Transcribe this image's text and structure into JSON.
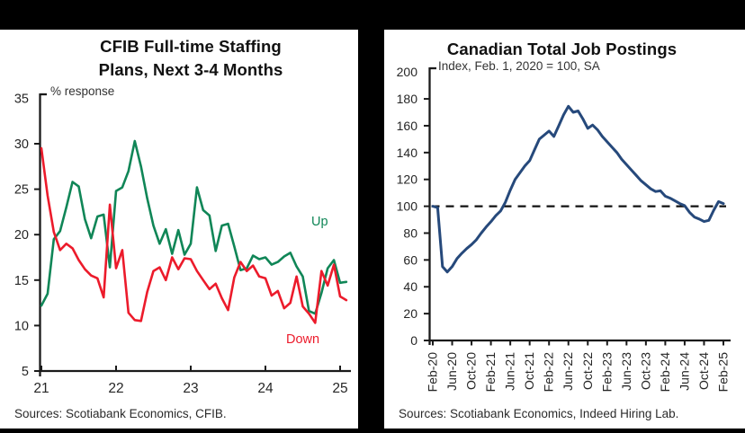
{
  "page": {
    "background": "#000000",
    "panel_background": "#ffffff"
  },
  "left_panel": {
    "source": "Sources: Scotiabank Economics, CFIB."
  },
  "right_panel": {
    "source": "Sources: Scotiabank Economics, Indeed Hiring Lab."
  },
  "chart_data": [
    {
      "id": "cfib_staffing_plans",
      "type": "line",
      "title": "CFIB Full-time Staffing Plans, Next 3-4 Months",
      "title_lines": [
        "CFIB Full-time Staffing",
        "Plans, Next 3-4 Months"
      ],
      "ylabel": "% response",
      "ylim": [
        5,
        35
      ],
      "yticks": [
        5,
        10,
        15,
        20,
        25,
        30,
        35
      ],
      "x_frequency": "monthly",
      "x_start": "Jan-2021",
      "x_end": "Feb-2025",
      "xtick_labels": [
        "21",
        "22",
        "23",
        "24",
        "25"
      ],
      "xtick_month_index": [
        0,
        12,
        24,
        36,
        48
      ],
      "grid": false,
      "legend_position": "in-plot",
      "series": [
        {
          "name": "Up",
          "color": "#108657",
          "values": [
            12.2,
            13.5,
            19.5,
            20.4,
            23.0,
            25.8,
            25.3,
            21.7,
            19.6,
            22.0,
            22.2,
            16.4,
            24.8,
            25.2,
            27.0,
            30.3,
            27.5,
            24.0,
            21.0,
            19.0,
            20.6,
            17.9,
            20.5,
            17.8,
            19.0,
            25.2,
            22.7,
            22.1,
            18.2,
            21.0,
            21.2,
            18.7,
            16.1,
            16.3,
            17.7,
            17.3,
            17.5,
            16.7,
            17.0,
            17.6,
            18.0,
            16.5,
            15.4,
            11.6,
            11.3,
            13.6,
            16.3,
            17.2,
            14.7,
            14.8
          ]
        },
        {
          "name": "Down",
          "color": "#EC1B2B",
          "values": [
            29.5,
            24.3,
            20.3,
            18.3,
            19.0,
            18.5,
            17.2,
            16.2,
            15.5,
            15.2,
            13.1,
            23.3,
            16.3,
            18.3,
            11.4,
            10.6,
            10.5,
            13.7,
            16.0,
            16.4,
            15.0,
            17.5,
            16.2,
            17.4,
            17.3,
            16.0,
            15.0,
            14.0,
            14.6,
            13.0,
            11.7,
            15.3,
            17.0,
            16.0,
            16.6,
            15.4,
            15.2,
            13.3,
            13.8,
            11.9,
            12.5,
            15.4,
            12.1,
            11.3,
            10.3,
            16.0,
            14.4,
            16.7,
            13.2,
            12.8
          ]
        }
      ],
      "source": "Sources: Scotiabank Economics, CFIB."
    },
    {
      "id": "canadian_total_job_postings",
      "type": "line",
      "title": "Canadian Total Job Postings",
      "subtitle": "Index, Feb. 1, 2020 = 100, SA",
      "ylim": [
        0,
        200
      ],
      "yticks": [
        0,
        20,
        40,
        60,
        80,
        100,
        120,
        140,
        160,
        180,
        200
      ],
      "x_frequency": "monthly",
      "x_start": "Feb-2020",
      "x_end": "Feb-2025",
      "xtick_labels": [
        "Feb-20",
        "Jun-20",
        "Oct-20",
        "Feb-21",
        "Jun-21",
        "Oct-21",
        "Feb-22",
        "Jun-22",
        "Oct-22",
        "Feb-23",
        "Jun-23",
        "Oct-23",
        "Feb-24",
        "Jun-24",
        "Oct-24",
        "Feb-25"
      ],
      "xtick_month_index": [
        0,
        4,
        8,
        12,
        16,
        20,
        24,
        28,
        32,
        36,
        40,
        44,
        48,
        52,
        56,
        60
      ],
      "xtick_label_rotation": -90,
      "grid": false,
      "reference_line": {
        "value": 100,
        "style": "dashed",
        "color": "#111111"
      },
      "series": [
        {
          "name": "Total job postings index",
          "color": "#26497B",
          "values": [
            100,
            99,
            55,
            51,
            55,
            61,
            65,
            68.5,
            71.5,
            75,
            80,
            84.5,
            88.5,
            93,
            96.5,
            103,
            112,
            120,
            125,
            130,
            134,
            142,
            150,
            153,
            156,
            152,
            160,
            168,
            174.5,
            170,
            171,
            165,
            158,
            160.5,
            157,
            152,
            148,
            144,
            140,
            135,
            131,
            127,
            123,
            119,
            116,
            113,
            111,
            111.5,
            107.5,
            106,
            104,
            102,
            100.5,
            95.5,
            92,
            90.5,
            88.6,
            89.5,
            97,
            103.5,
            102
          ]
        }
      ],
      "source": "Sources: Scotiabank Economics, Indeed Hiring Lab."
    }
  ]
}
